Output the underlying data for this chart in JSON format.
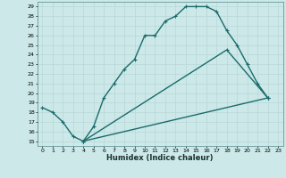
{
  "title": "",
  "xlabel": "Humidex (Indice chaleur)",
  "bg_color": "#cce8e8",
  "line_color": "#1a6b6b",
  "grid_color": "#aacccc",
  "xlim": [
    -0.5,
    23.5
  ],
  "ylim": [
    14.5,
    29.5
  ],
  "xticks": [
    0,
    1,
    2,
    3,
    4,
    5,
    6,
    7,
    8,
    9,
    10,
    11,
    12,
    13,
    14,
    15,
    16,
    17,
    18,
    19,
    20,
    21,
    22,
    23
  ],
  "yticks": [
    15,
    16,
    17,
    18,
    19,
    20,
    21,
    22,
    23,
    24,
    25,
    26,
    27,
    28,
    29
  ],
  "line1_x": [
    0,
    1,
    2,
    3,
    4,
    5,
    6,
    7,
    8,
    9,
    10,
    11,
    12,
    13,
    14,
    15,
    16,
    17,
    18,
    19,
    20,
    21,
    22
  ],
  "line1_y": [
    18.5,
    18.0,
    17.0,
    15.5,
    15.0,
    16.5,
    19.5,
    21.0,
    22.5,
    23.5,
    26.0,
    26.0,
    27.5,
    28.0,
    29.0,
    29.0,
    29.0,
    28.5,
    26.5,
    25.0,
    23.0,
    21.0,
    19.5
  ],
  "line2_pts": [
    [
      4,
      15.0
    ],
    [
      18,
      24.5
    ],
    [
      22,
      19.5
    ]
  ],
  "line3_pts": [
    [
      4,
      15.0
    ],
    [
      22,
      19.5
    ]
  ],
  "line_width": 1.0,
  "marker_size": 3.0
}
